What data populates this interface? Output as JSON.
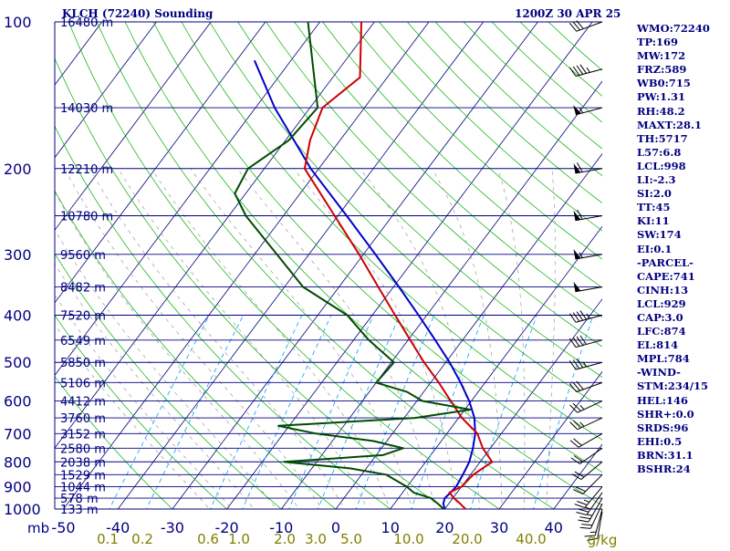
{
  "header": {
    "station": "KLCH (72240) Sounding",
    "time": "1200Z 30 APR 25"
  },
  "colors": {
    "background": "#ffffff",
    "pressure_lines": "#000080",
    "isotherms": "#00007a",
    "dry_adiabats": "#00b000",
    "moist_adiabats": "#9a9a9a",
    "mixing_ratio": "#00a0ff",
    "temperature": "#cc0000",
    "dewpoint": "#004a00",
    "parcel": "#0000cc",
    "tick_labels": "#808000",
    "wind_barbs": "#000000",
    "text": "#000080"
  },
  "stats": [
    "WMO:72240",
    "TP:169",
    "MW:172",
    "FRZ:589",
    "WB0:715",
    "PW:1.31",
    "RH:48.2",
    "MAXT:28.1",
    "TH:5717",
    "L57:6.8",
    "LCL:998",
    "LI:-2.3",
    "SI:2.0",
    "TT:45",
    "KI:11",
    "SW:174",
    "EI:0.1",
    "-PARCEL-",
    "CAPE:741",
    "CINH:13",
    "LCL:929",
    "CAP:3.0",
    "LFC:874",
    "EL:814",
    "MPL:784",
    "-WIND-",
    "STM:234/15",
    "HEL:146",
    "SHR+:0.0",
    "SRDS:96",
    "EHI:0.5",
    "BRN:31.1",
    "BSHR:24"
  ],
  "chart_data": {
    "type": "skew-t",
    "pressure_unit": "mb",
    "pressure_ticks": [
      100,
      200,
      300,
      400,
      500,
      600,
      700,
      800,
      900,
      1000
    ],
    "temperature_ticks": [
      -50,
      -40,
      -30,
      -20,
      -10,
      0,
      10,
      20,
      30,
      40
    ],
    "mixing_ratio_labels": [
      "0.1",
      "0.2",
      "0.6",
      "1.0",
      "2.0",
      "3.0",
      "5.0",
      "10.0",
      "20.0",
      "40.0"
    ],
    "mixing_ratio_unit": "g/kg",
    "height_labels": [
      {
        "p": 100,
        "label": "16480 m"
      },
      {
        "p": 150,
        "label": "14030 m"
      },
      {
        "p": 200,
        "label": "12210 m"
      },
      {
        "p": 250,
        "label": "10780 m"
      },
      {
        "p": 300,
        "label": "9560 m"
      },
      {
        "p": 350,
        "label": "8482 m"
      },
      {
        "p": 400,
        "label": "7520 m"
      },
      {
        "p": 450,
        "label": "6549 m"
      },
      {
        "p": 500,
        "label": "5850 m"
      },
      {
        "p": 550,
        "label": "5106 m"
      },
      {
        "p": 600,
        "label": "4412 m"
      },
      {
        "p": 650,
        "label": "3760 m"
      },
      {
        "p": 700,
        "label": "3152 m"
      },
      {
        "p": 750,
        "label": "2580 m"
      },
      {
        "p": 800,
        "label": "2038 m"
      },
      {
        "p": 850,
        "label": "1529 m"
      },
      {
        "p": 900,
        "label": "1044 m"
      },
      {
        "p": 950,
        "label": "578 m"
      },
      {
        "p": 1000,
        "label": "133 m"
      }
    ],
    "temperature_profile": [
      [
        1012,
        21.5
      ],
      [
        1000,
        23.8
      ],
      [
        975,
        22.1
      ],
      [
        950,
        20.2
      ],
      [
        925,
        18.6
      ],
      [
        900,
        20.0
      ],
      [
        850,
        20.5
      ],
      [
        800,
        22.2
      ],
      [
        750,
        18.6
      ],
      [
        700,
        15.6
      ],
      [
        650,
        10.6
      ],
      [
        600,
        6.2
      ],
      [
        550,
        1.5
      ],
      [
        500,
        -4.0
      ],
      [
        450,
        -9.6
      ],
      [
        400,
        -15.8
      ],
      [
        350,
        -22.8
      ],
      [
        300,
        -30.8
      ],
      [
        250,
        -40.6
      ],
      [
        200,
        -52.6
      ],
      [
        175,
        -55.5
      ],
      [
        150,
        -57.7
      ],
      [
        130,
        -55.0
      ],
      [
        100,
        -62.4
      ]
    ],
    "dewpoint_profile": [
      [
        1012,
        20.5
      ],
      [
        1000,
        19.8
      ],
      [
        975,
        18.0
      ],
      [
        950,
        16.0
      ],
      [
        925,
        12.0
      ],
      [
        900,
        10.0
      ],
      [
        850,
        4.5
      ],
      [
        825,
        -3.0
      ],
      [
        800,
        -16.0
      ],
      [
        775,
        1.2
      ],
      [
        750,
        4.0
      ],
      [
        725,
        -2.5
      ],
      [
        700,
        -14.0
      ],
      [
        675,
        -22.0
      ],
      [
        650,
        2.0
      ],
      [
        625,
        11.0
      ],
      [
        600,
        1.0
      ],
      [
        575,
        -3.0
      ],
      [
        550,
        -10.0
      ],
      [
        500,
        -9.5
      ],
      [
        450,
        -17.2
      ],
      [
        400,
        -24.6
      ],
      [
        350,
        -36.6
      ],
      [
        300,
        -45.9
      ],
      [
        250,
        -56.9
      ],
      [
        225,
        -62.0
      ],
      [
        200,
        -63.0
      ],
      [
        175,
        -59.4
      ],
      [
        150,
        -58.6
      ],
      [
        100,
        -72.2
      ]
    ],
    "parcel_profile": [
      [
        1012,
        21.5
      ],
      [
        1000,
        20.0
      ],
      [
        975,
        19.0
      ],
      [
        950,
        18.5
      ],
      [
        925,
        18.8
      ],
      [
        900,
        19.0
      ],
      [
        850,
        18.6
      ],
      [
        800,
        18.0
      ],
      [
        750,
        16.8
      ],
      [
        700,
        15.2
      ],
      [
        650,
        12.9
      ],
      [
        600,
        9.6
      ],
      [
        550,
        5.5
      ],
      [
        500,
        0.7
      ],
      [
        450,
        -5.0
      ],
      [
        400,
        -11.5
      ],
      [
        350,
        -19.0
      ],
      [
        300,
        -27.8
      ],
      [
        250,
        -38.4
      ],
      [
        200,
        -51.5
      ],
      [
        150,
        -66.5
      ],
      [
        120,
        -76.7
      ]
    ],
    "wind_barbs": [
      {
        "p": 1012,
        "dir": 190,
        "spd": 10
      },
      {
        "p": 1000,
        "dir": 195,
        "spd": 15
      },
      {
        "p": 975,
        "dir": 205,
        "spd": 20
      },
      {
        "p": 950,
        "dir": 210,
        "spd": 25
      },
      {
        "p": 925,
        "dir": 215,
        "spd": 25
      },
      {
        "p": 900,
        "dir": 220,
        "spd": 25
      },
      {
        "p": 850,
        "dir": 225,
        "spd": 20
      },
      {
        "p": 800,
        "dir": 230,
        "spd": 20
      },
      {
        "p": 750,
        "dir": 235,
        "spd": 20
      },
      {
        "p": 700,
        "dir": 240,
        "spd": 20
      },
      {
        "p": 650,
        "dir": 245,
        "spd": 25
      },
      {
        "p": 600,
        "dir": 245,
        "spd": 25
      },
      {
        "p": 550,
        "dir": 250,
        "spd": 30
      },
      {
        "p": 500,
        "dir": 255,
        "spd": 35
      },
      {
        "p": 450,
        "dir": 255,
        "spd": 40
      },
      {
        "p": 400,
        "dir": 255,
        "spd": 45
      },
      {
        "p": 350,
        "dir": 260,
        "spd": 50
      },
      {
        "p": 300,
        "dir": 260,
        "spd": 55
      },
      {
        "p": 250,
        "dir": 260,
        "spd": 60
      },
      {
        "p": 200,
        "dir": 260,
        "spd": 60
      },
      {
        "p": 150,
        "dir": 255,
        "spd": 55
      },
      {
        "p": 125,
        "dir": 255,
        "spd": 45
      },
      {
        "p": 100,
        "dir": 250,
        "spd": 30
      }
    ]
  }
}
